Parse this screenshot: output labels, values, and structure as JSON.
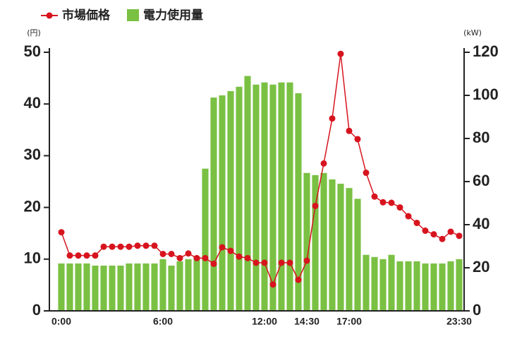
{
  "chart_data": {
    "type": "bar-line",
    "y_unit": "(円)",
    "y2_unit": "(kW)",
    "categories": [
      "0:00",
      null,
      null,
      null,
      null,
      null,
      null,
      null,
      null,
      null,
      null,
      null,
      "6:00",
      null,
      null,
      null,
      null,
      null,
      null,
      null,
      null,
      null,
      null,
      null,
      "12:00",
      null,
      null,
      null,
      null,
      "14:30",
      null,
      null,
      null,
      null,
      "17:00",
      null,
      null,
      null,
      null,
      null,
      null,
      null,
      null,
      null,
      null,
      null,
      null,
      "23:30"
    ],
    "series": [
      {
        "name": "市場価格",
        "type": "line",
        "axis": "y",
        "color": "#d7141e",
        "values": [
          15.2,
          10.7,
          10.7,
          10.7,
          10.7,
          12.4,
          12.4,
          12.4,
          12.4,
          12.6,
          12.6,
          12.6,
          11.0,
          11.0,
          10.2,
          11.1,
          10.2,
          10.2,
          9.1,
          12.3,
          11.6,
          10.5,
          10.2,
          9.3,
          9.3,
          5.1,
          9.3,
          9.3,
          6.0,
          9.7,
          20.3,
          28.5,
          37.2,
          49.7,
          34.8,
          33.2,
          26.7,
          22.1,
          21.0,
          20.9,
          20.0,
          18.3,
          17.0,
          15.5,
          14.8,
          13.9,
          15.3,
          14.5
        ]
      },
      {
        "name": "電力使用量",
        "type": "bar",
        "axis": "y2",
        "color": "#7ac143",
        "values": [
          22,
          22,
          22,
          22,
          21,
          21,
          21,
          21,
          22,
          22,
          22,
          22,
          24,
          21,
          23,
          24,
          25,
          66,
          99,
          100,
          102,
          104,
          109,
          105,
          106,
          105,
          106,
          106,
          101,
          64,
          63,
          64,
          61,
          59,
          57,
          52,
          26,
          25,
          24,
          26,
          23,
          23,
          23,
          22,
          22,
          22,
          23,
          24
        ]
      }
    ],
    "ylim": [
      0,
      50
    ],
    "yticks": [
      0,
      10,
      20,
      30,
      40,
      50
    ],
    "y2lim": [
      0,
      120
    ],
    "y2ticks": [
      0,
      20,
      40,
      60,
      80,
      100,
      120
    ]
  }
}
